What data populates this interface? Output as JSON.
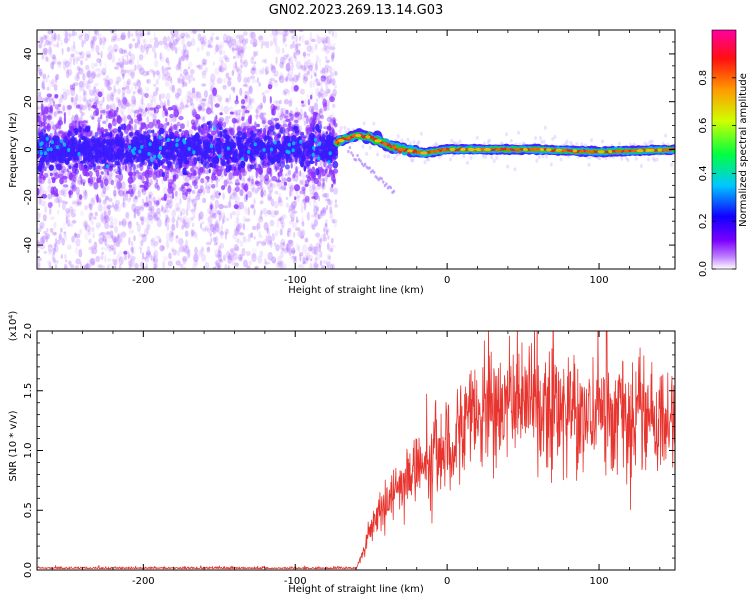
{
  "title": "GN02.2023.269.13.14.G03",
  "spectrogram": {
    "xlabel": "Height of straight line (km)",
    "ylabel": "Frequency (Hz)",
    "xlim": [
      -270,
      150
    ],
    "ylim": [
      -50,
      50
    ],
    "xticks": [
      "-200",
      "-100",
      "0",
      "100"
    ],
    "xtick_values": [
      -200,
      -100,
      0,
      100
    ],
    "yticks": [
      "-40",
      "-20",
      "0",
      "20",
      "40"
    ],
    "ytick_values": [
      -40,
      -20,
      0,
      20,
      40
    ],
    "colorbar": {
      "label": "Normalized spectral amplitude",
      "ticks": [
        "0.0",
        "0.2",
        "0.4",
        "0.6",
        "0.8"
      ],
      "tick_values": [
        0,
        0.2,
        0.4,
        0.6,
        0.8
      ],
      "range": [
        0,
        1
      ]
    },
    "noise_region_end_km": -73,
    "signal_ridge": [
      {
        "x": -73,
        "f": 3
      },
      {
        "x": -60,
        "f": 6
      },
      {
        "x": -50,
        "f": 5
      },
      {
        "x": -40,
        "f": 2
      },
      {
        "x": -30,
        "f": 0
      },
      {
        "x": -15,
        "f": -1.5
      },
      {
        "x": 0,
        "f": 0
      },
      {
        "x": 30,
        "f": 0
      },
      {
        "x": 60,
        "f": 0
      },
      {
        "x": 100,
        "f": -1
      },
      {
        "x": 150,
        "f": 0
      }
    ],
    "colors": {
      "noise": "#b45cff",
      "core": "#3b1cff",
      "ridge": "#e8261e",
      "ridge_edge": "#10d820"
    }
  },
  "snr_plot": {
    "xlabel": "Height of straight line (km)",
    "ylabel": "SNR (10 * v/v)",
    "multiplier": "(x10⁴)",
    "xlim": [
      -270,
      150
    ],
    "ylim": [
      0,
      2.0
    ],
    "xticks": [
      "-200",
      "-100",
      "0",
      "100"
    ],
    "xtick_values": [
      -200,
      -100,
      0,
      100
    ],
    "yticks": [
      "0.0",
      "0.5",
      "1.0",
      "1.5",
      "2.0"
    ],
    "ytick_values": [
      0,
      0.5,
      1.0,
      1.5,
      2.0
    ],
    "line_color": "#e8342e",
    "chart_data": {
      "type": "line",
      "envelope": [
        {
          "x": -270,
          "y": 0.01
        },
        {
          "x": -60,
          "y": 0.01
        },
        {
          "x": -55,
          "y": 0.15
        },
        {
          "x": -50,
          "y": 0.35
        },
        {
          "x": -40,
          "y": 0.55
        },
        {
          "x": -30,
          "y": 0.75
        },
        {
          "x": -20,
          "y": 0.85
        },
        {
          "x": -10,
          "y": 0.95
        },
        {
          "x": 0,
          "y": 1.05
        },
        {
          "x": 10,
          "y": 1.2
        },
        {
          "x": 20,
          "y": 1.35
        },
        {
          "x": 30,
          "y": 1.4
        },
        {
          "x": 50,
          "y": 1.42
        },
        {
          "x": 70,
          "y": 1.35
        },
        {
          "x": 100,
          "y": 1.3
        },
        {
          "x": 130,
          "y": 1.25
        },
        {
          "x": 150,
          "y": 1.22
        }
      ],
      "spikes": [
        {
          "x": 105,
          "y": 2.0
        }
      ]
    }
  }
}
